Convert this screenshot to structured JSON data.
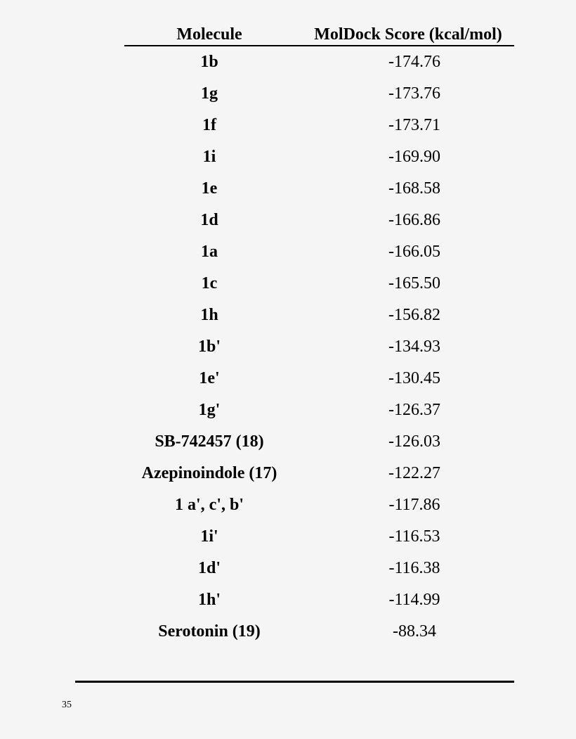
{
  "table": {
    "headers": {
      "molecule": "Molecule",
      "score": "MolDock Score (kcal/mol)"
    },
    "rows": [
      {
        "molecule": "1b",
        "score": "-174.76"
      },
      {
        "molecule": "1g",
        "score": "-173.76"
      },
      {
        "molecule": "1f",
        "score": "-173.71"
      },
      {
        "molecule": "1i",
        "score": "-169.90"
      },
      {
        "molecule": "1e",
        "score": "-168.58"
      },
      {
        "molecule": "1d",
        "score": "-166.86"
      },
      {
        "molecule": "1a",
        "score": "-166.05"
      },
      {
        "molecule": "1c",
        "score": "-165.50"
      },
      {
        "molecule": "1h",
        "score": "-156.82"
      },
      {
        "molecule": "1b'",
        "score": "-134.93"
      },
      {
        "molecule": "1e'",
        "score": "-130.45"
      },
      {
        "molecule": "1g'",
        "score": "-126.37"
      },
      {
        "molecule": "SB-742457 (18)",
        "score": "-126.03"
      },
      {
        "molecule": "Azepinoindole (17)",
        "score": "-122.27"
      },
      {
        "molecule": "1 a', c', b'",
        "score": "-117.86"
      },
      {
        "molecule": "1i'",
        "score": "-116.53"
      },
      {
        "molecule": "1d'",
        "score": "-116.38"
      },
      {
        "molecule": "1h'",
        "score": "-114.99"
      },
      {
        "molecule": "Serotonin (19)",
        "score": "-88.34"
      }
    ]
  },
  "footer": {
    "page_number": "35"
  }
}
